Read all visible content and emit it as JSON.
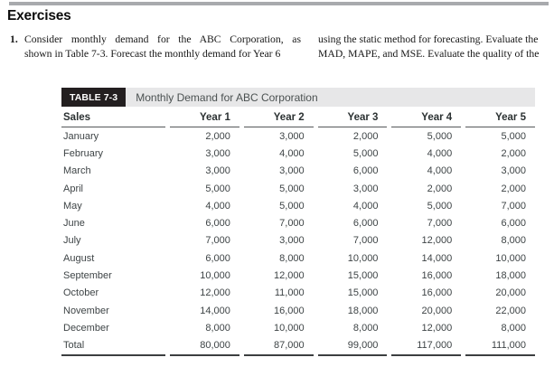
{
  "page": {
    "heading": "Exercises"
  },
  "exercise": {
    "number": "1.",
    "left_column_line1": "Consider monthly demand for the ABC Corporation, as",
    "left_column_line2": "shown in Table 7-3. Forecast the monthly demand for Year 6",
    "right_column_line1": "using the static method for forecasting. Evaluate the",
    "right_column_line2": "MAD, MAPE, and MSE. Evaluate the quality of the"
  },
  "table": {
    "tag": "TABLE 7-3",
    "title": "Monthly Demand for ABC Corporation",
    "columns": [
      "Sales",
      "Year 1",
      "Year 2",
      "Year 3",
      "Year 4",
      "Year 5"
    ],
    "rows": [
      [
        "January",
        "2,000",
        "3,000",
        "2,000",
        "5,000",
        "5,000"
      ],
      [
        "February",
        "3,000",
        "4,000",
        "5,000",
        "4,000",
        "2,000"
      ],
      [
        "March",
        "3,000",
        "3,000",
        "6,000",
        "4,000",
        "3,000"
      ],
      [
        "April",
        "5,000",
        "5,000",
        "3,000",
        "2,000",
        "2,000"
      ],
      [
        "May",
        "4,000",
        "5,000",
        "4,000",
        "5,000",
        "7,000"
      ],
      [
        "June",
        "6,000",
        "7,000",
        "6,000",
        "7,000",
        "6,000"
      ],
      [
        "July",
        "7,000",
        "3,000",
        "7,000",
        "12,000",
        "8,000"
      ],
      [
        "August",
        "6,000",
        "8,000",
        "10,000",
        "14,000",
        "10,000"
      ],
      [
        "September",
        "10,000",
        "12,000",
        "15,000",
        "16,000",
        "18,000"
      ],
      [
        "October",
        "12,000",
        "11,000",
        "15,000",
        "16,000",
        "20,000"
      ],
      [
        "November",
        "14,000",
        "16,000",
        "18,000",
        "20,000",
        "22,000"
      ],
      [
        "December",
        "8,000",
        "10,000",
        "8,000",
        "12,000",
        "8,000"
      ],
      [
        "Total",
        "80,000",
        "87,000",
        "99,000",
        "117,000",
        "111,000"
      ]
    ],
    "colors": {
      "tag_background": "#231f20",
      "title_bar_background": "#e7e7e8",
      "title_text": "#4b5151",
      "body_text": "#3e4446",
      "top_rule": "#a8aaad"
    }
  }
}
